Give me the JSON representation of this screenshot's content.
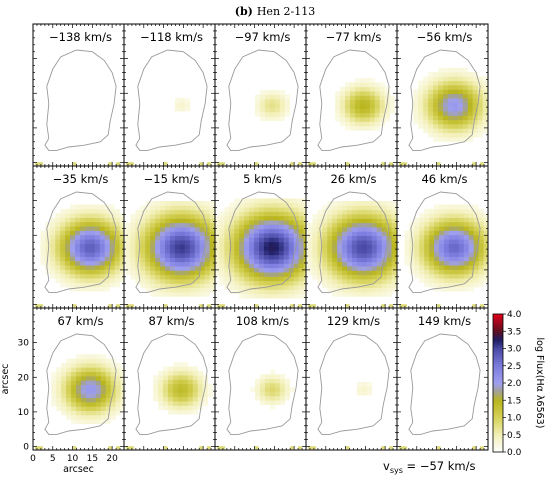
{
  "figure": {
    "label": "(b)",
    "name": "Hen 2-113"
  },
  "panels": [
    {
      "velocity": "−138 km/s",
      "peak": 0.0,
      "radius": 0
    },
    {
      "velocity": "−118 km/s",
      "peak": 0.35,
      "radius": 3.0
    },
    {
      "velocity": "−97 km/s",
      "peak": 0.75,
      "radius": 4.5
    },
    {
      "velocity": "−77 km/s",
      "peak": 1.5,
      "radius": 6.0
    },
    {
      "velocity": "−56 km/s",
      "peak": 2.1,
      "radius": 8.0
    },
    {
      "velocity": "−35 km/s",
      "peak": 2.8,
      "radius": 9.0
    },
    {
      "velocity": "−15 km/s",
      "peak": 3.1,
      "radius": 10.5
    },
    {
      "velocity": "5 km/s",
      "peak": 3.3,
      "radius": 11.0
    },
    {
      "velocity": "26 km/s",
      "peak": 3.0,
      "radius": 10.5
    },
    {
      "velocity": "46 km/s",
      "peak": 2.7,
      "radius": 9.0
    },
    {
      "velocity": "67 km/s",
      "peak": 2.1,
      "radius": 7.5
    },
    {
      "velocity": "87 km/s",
      "peak": 1.4,
      "radius": 6.0
    },
    {
      "velocity": "108 km/s",
      "peak": 0.9,
      "radius": 4.5
    },
    {
      "velocity": "129 km/s",
      "peak": 0.35,
      "radius": 3.0
    },
    {
      "velocity": "149 km/s",
      "peak": 0.0,
      "radius": 0
    }
  ],
  "axes": {
    "xlabel": "arcsec",
    "ylabel": "arcsec",
    "xticks": [
      "0",
      "5",
      "10",
      "15",
      "20"
    ],
    "yticks": [
      "0",
      "10",
      "20",
      "30"
    ],
    "xrange": [
      0,
      23
    ],
    "yrange": [
      -1,
      40
    ]
  },
  "colorbar": {
    "label": "log Flux(Hα λ6563)",
    "ticks": [
      "0.0",
      "0.5",
      "1.0",
      "1.5",
      "2.0",
      "2.5",
      "3.0",
      "3.5",
      "4.0"
    ],
    "range": [
      0,
      4
    ],
    "stops": [
      {
        "v": 0.0,
        "c": "#ffffff"
      },
      {
        "v": 0.5,
        "c": "#f3f0b8"
      },
      {
        "v": 1.0,
        "c": "#d6d25a"
      },
      {
        "v": 1.5,
        "c": "#b9b61e"
      },
      {
        "v": 1.75,
        "c": "#a3a28e"
      },
      {
        "v": 2.0,
        "c": "#9f9ff0"
      },
      {
        "v": 2.5,
        "c": "#7c7cde"
      },
      {
        "v": 3.0,
        "c": "#4a4aa5"
      },
      {
        "v": 3.25,
        "c": "#1e1e64"
      },
      {
        "v": 3.5,
        "c": "#5a1020"
      },
      {
        "v": 4.0,
        "c": "#e0001a"
      }
    ]
  },
  "vsys": {
    "prefix": "v",
    "subscript": "sys",
    "text": " = −57 km/s"
  },
  "colors": {
    "contour": "#9a9a9a",
    "frame": "#000000",
    "noise": "#d6d25a"
  }
}
